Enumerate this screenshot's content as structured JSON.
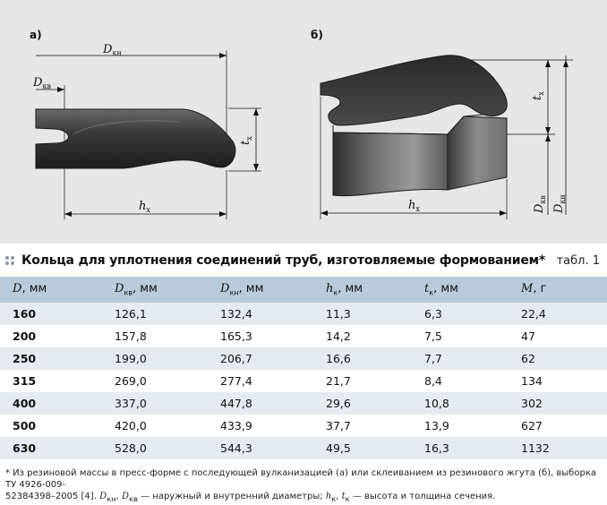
{
  "figure": {
    "label_a": "а)",
    "label_b": "б)",
    "dkn": "D",
    "dkn_sub": "кн",
    "dkv": "D",
    "dkv_sub": "кв",
    "tx": "t",
    "tx_sub": "х",
    "hx": "h",
    "hx_sub": "х"
  },
  "caption": {
    "title": "Кольца для уплотнения соединений труб, изготовляемые формованием*",
    "table_no": "табл. 1"
  },
  "table": {
    "headers": [
      {
        "v": "D",
        "sub": "",
        "unit": ", мм"
      },
      {
        "v": "D",
        "sub": "кв",
        "unit": ", мм"
      },
      {
        "v": "D",
        "sub": "кн",
        "unit": ", мм"
      },
      {
        "v": "h",
        "sub": "к",
        "unit": ", мм"
      },
      {
        "v": "t",
        "sub": "к",
        "unit": ", мм"
      },
      {
        "v": "M",
        "sub": "",
        "unit": ", г"
      }
    ],
    "rows": [
      [
        "160",
        "126,1",
        "132,4",
        "11,3",
        "6,3",
        "22,4"
      ],
      [
        "200",
        "157,8",
        "165,3",
        "14,2",
        "7,5",
        "47"
      ],
      [
        "250",
        "199,0",
        "206,7",
        "16,6",
        "7,7",
        "62"
      ],
      [
        "315",
        "269,0",
        "277,4",
        "21,7",
        "8,4",
        "134"
      ],
      [
        "400",
        "337,0",
        "447,8",
        "29,6",
        "10,8",
        "302"
      ],
      [
        "500",
        "420,0",
        "433,9",
        "37,7",
        "13,9",
        "627"
      ],
      [
        "630",
        "528,0",
        "544,3",
        "49,5",
        "16,3",
        "1132"
      ]
    ]
  },
  "footnote": {
    "line1": "* Из резиновой массы в пресс-форме с последующей вулканизацией (а) или склеиванием из резинового жгута (б), выборка ТУ 4926-009-",
    "line2a": "52384398–2005 [4]. ",
    "line2b": "D",
    "line2b_sub": "кн",
    "line2c": ", ",
    "line2d": "D",
    "line2d_sub": "кв",
    "line2e": " — наружный и внутренний диаметры; ",
    "line2f": "h",
    "line2f_sub": "к",
    "line2g": ", ",
    "line2h": "t",
    "line2h_sub": "к",
    "line2i": " — высота и толщина сечения."
  }
}
